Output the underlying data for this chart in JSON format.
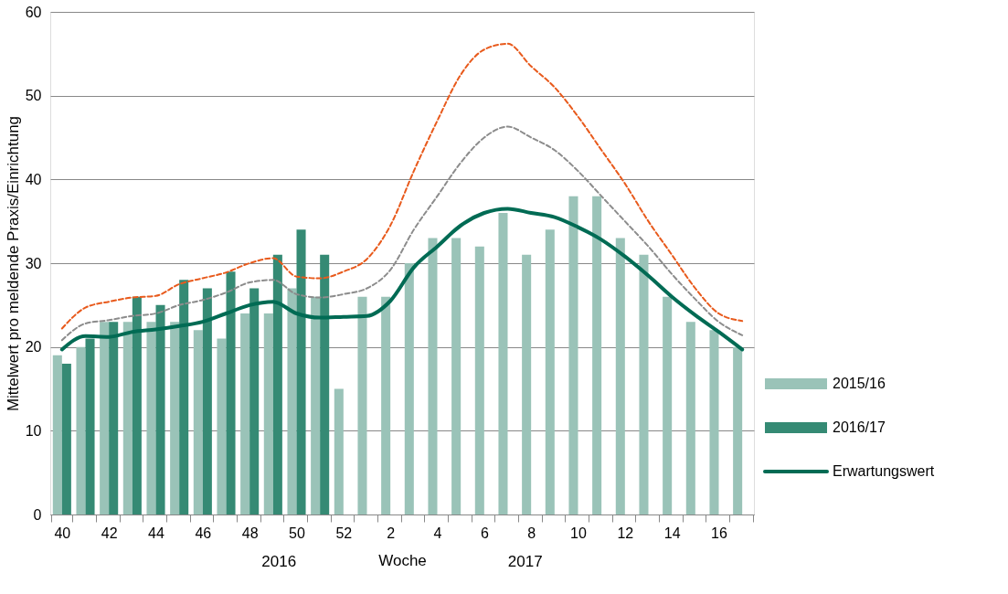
{
  "chart_data": {
    "type": "bar",
    "xlabel": "Woche",
    "ylabel": "Mittelwert pro meldende Praxis/Einrichtung",
    "categories": [
      "40",
      null,
      "42",
      null,
      "44",
      null,
      "46",
      null,
      "48",
      null,
      "50",
      null,
      "52",
      null,
      "2",
      null,
      "4",
      null,
      "6",
      null,
      "8",
      null,
      "10",
      null,
      "12",
      null,
      "14",
      null,
      "16",
      null
    ],
    "series": [
      {
        "name": "2015/16",
        "color": "#9ac3b8",
        "values": [
          19,
          20,
          23,
          23,
          23,
          23,
          22,
          21,
          24,
          24,
          27,
          26,
          15,
          26,
          26,
          30,
          33,
          33,
          32,
          36,
          31,
          34,
          38,
          38,
          33,
          31,
          26,
          23,
          22,
          20
        ]
      },
      {
        "name": "2016/17",
        "color": "#358a74",
        "values": [
          18,
          21,
          23,
          26,
          25,
          28,
          27,
          29,
          27,
          31,
          34,
          31,
          null,
          null,
          null,
          null,
          null,
          null,
          null,
          null,
          null,
          null,
          null,
          null,
          null,
          null,
          null,
          null,
          null,
          null
        ]
      },
      {
        "name": "Erwartungswert",
        "type": "line",
        "color": "#006b54",
        "line_style": "solid",
        "values": [
          19.7,
          21.3,
          21.2,
          21.8,
          22.1,
          22.5,
          23.0,
          24.0,
          25.0,
          25.4,
          24.0,
          23.5,
          23.6,
          23.7,
          25.5,
          29.5,
          32,
          34.5,
          36,
          36.5,
          36,
          35.5,
          34.3,
          32.8,
          30.8,
          28.5,
          26,
          23.8,
          21.8,
          19.7
        ]
      },
      {
        "type": "line",
        "color": "#8c8c8c",
        "line_style": "dashed",
        "values": [
          20.8,
          22.8,
          23.2,
          23.7,
          24,
          25,
          25.6,
          26.5,
          27.7,
          28,
          26.3,
          25.9,
          26.3,
          27,
          29.2,
          34,
          38,
          42,
          45,
          46.3,
          45,
          43.5,
          41,
          38,
          35,
          32,
          28.7,
          25.7,
          23,
          21.4
        ]
      },
      {
        "type": "line",
        "color": "#e85a1c",
        "line_style": "dashed",
        "values": [
          22.2,
          24.7,
          25.4,
          25.9,
          26.1,
          27.5,
          28.2,
          28.9,
          30,
          30.6,
          28.4,
          28.2,
          29,
          30.5,
          34.5,
          41,
          47,
          52.5,
          55.5,
          56.2,
          53.5,
          51,
          47.5,
          43.5,
          39.5,
          35,
          31,
          27,
          24,
          23.1
        ]
      }
    ],
    "ylim": [
      0,
      60
    ],
    "yticks": [
      0,
      10,
      20,
      30,
      40,
      50,
      60
    ],
    "grid": "y",
    "legend": "right",
    "annotations": [
      "2016",
      "2017"
    ]
  }
}
